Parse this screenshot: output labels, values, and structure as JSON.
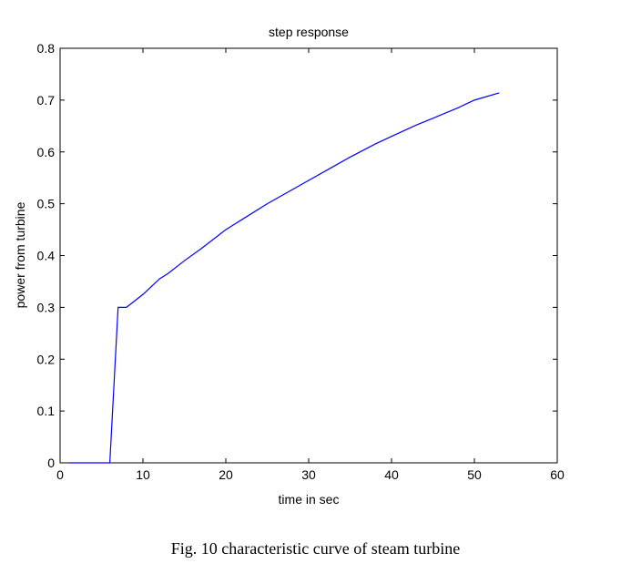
{
  "chart_data": {
    "type": "line",
    "title": "step response",
    "xlabel": "time in sec",
    "ylabel": "power from turbine",
    "xlim": [
      0,
      60
    ],
    "ylim": [
      0,
      0.8
    ],
    "xticks": [
      "0",
      "10",
      "20",
      "30",
      "40",
      "50",
      "60"
    ],
    "yticks": [
      "0",
      "0.1",
      "0.2",
      "0.3",
      "0.4",
      "0.5",
      "0.6",
      "0.7",
      "0.8"
    ],
    "grid": false,
    "series": [
      {
        "name": "step response",
        "color": "#0000ff",
        "x": [
          1,
          6,
          7,
          8,
          10,
          12,
          13,
          15,
          17,
          20,
          22,
          25,
          28,
          30,
          33,
          35,
          38,
          40,
          43,
          45,
          48,
          50,
          53
        ],
        "y": [
          0,
          0,
          0.3,
          0.3,
          0.325,
          0.355,
          0.365,
          0.39,
          0.413,
          0.45,
          0.47,
          0.5,
          0.527,
          0.545,
          0.572,
          0.59,
          0.615,
          0.63,
          0.652,
          0.665,
          0.685,
          0.7,
          0.714
        ]
      }
    ]
  },
  "caption": "Fig. 10 characteristic curve of steam turbine"
}
